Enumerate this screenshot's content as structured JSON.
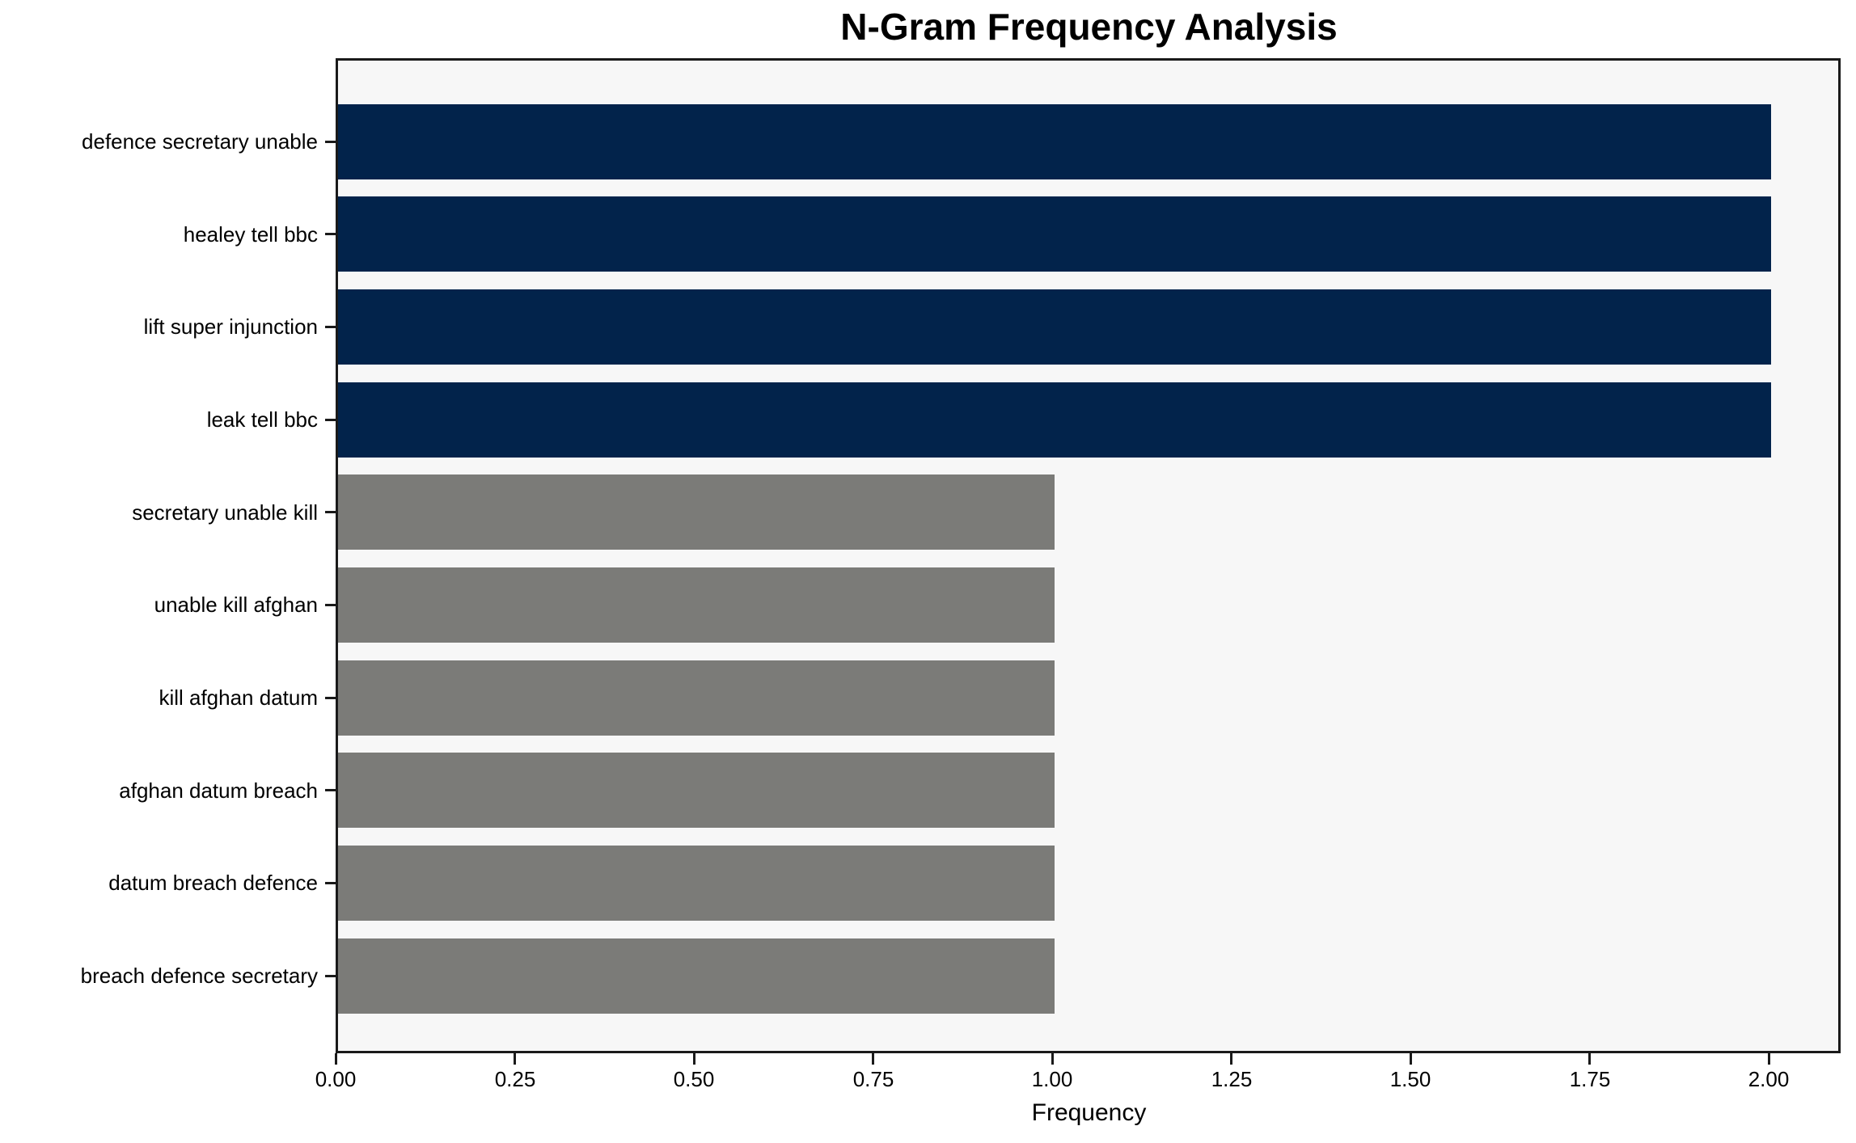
{
  "chart_data": {
    "type": "bar",
    "orientation": "horizontal",
    "title": "N-Gram Frequency Analysis",
    "xlabel": "Frequency",
    "ylabel": "",
    "categories": [
      "defence secretary unable",
      "healey tell bbc",
      "lift super injunction",
      "leak tell bbc",
      "secretary unable kill",
      "unable kill afghan",
      "kill afghan datum",
      "afghan datum breach",
      "datum breach defence",
      "breach defence secretary"
    ],
    "values": [
      2,
      2,
      2,
      2,
      1,
      1,
      1,
      1,
      1,
      1
    ],
    "bar_colors": [
      "#02234B",
      "#02234B",
      "#02234B",
      "#02234B",
      "#7B7B78",
      "#7B7B78",
      "#7B7B78",
      "#7B7B78",
      "#7B7B78",
      "#7B7B78"
    ],
    "xlim": [
      0,
      2.1
    ],
    "xticks": [
      0,
      0.25,
      0.5,
      0.75,
      1.0,
      1.25,
      1.5,
      1.75,
      2.0
    ],
    "xtick_labels": [
      "0.00",
      "0.25",
      "0.50",
      "0.75",
      "1.00",
      "1.25",
      "1.50",
      "1.75",
      "2.00"
    ],
    "grid": false,
    "legend": null,
    "colors": {
      "highlight_bar": "#02234B",
      "default_bar": "#7B7B78",
      "plot_background": "#F7F7F7",
      "figure_background": "#FFFFFF",
      "frame": "#1A1A1A",
      "text": "#000000"
    }
  }
}
